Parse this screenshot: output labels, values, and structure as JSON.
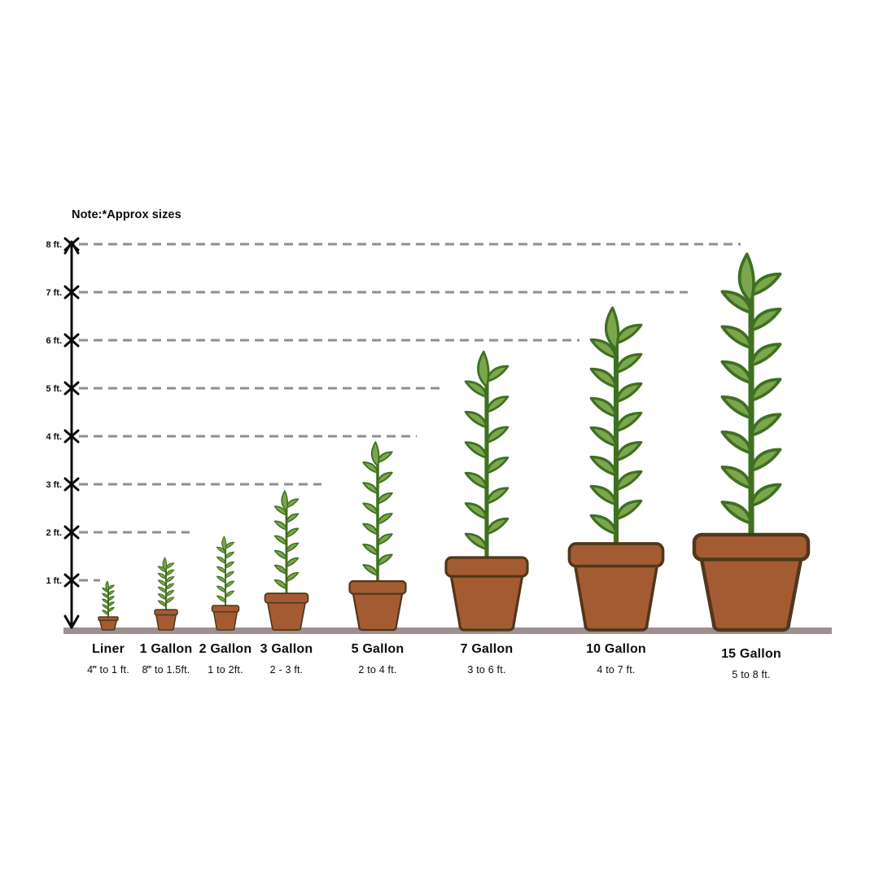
{
  "note": "Note:*Approx sizes",
  "colors": {
    "background": "#ffffff",
    "leaf_fill": "#7BA64C",
    "leaf_outline": "#3F7021",
    "stem": "#3F7021",
    "pot_fill": "#A55B32",
    "pot_outline": "#4E381C",
    "ground": "#9E9091",
    "dashed_line": "#8F8F8F",
    "axis": "#0a0a0a",
    "text": "#0d0d0d"
  },
  "chart_data": {
    "type": "bar",
    "variant": "pictorial-plant-pot-size-comparison",
    "note": "Note:*Approx sizes",
    "categories": [
      "Liner",
      "1 Gallon",
      "2 Gallon",
      "3 Gallon",
      "5 Gallon",
      "7 Gallon",
      "10 Gallon",
      "15 Gallon"
    ],
    "size_ranges": [
      "4‴ to 1 ft.",
      "8‴ to 1.5ft.",
      "1 to 2ft.",
      "2 - 3 ft.",
      "2 to 4 ft.",
      "3 to 6 ft.",
      "4 to 7 ft.",
      "5 to 8 ft."
    ],
    "height_range_ft": [
      [
        0.33,
        1
      ],
      [
        0.67,
        1.5
      ],
      [
        1,
        2
      ],
      [
        2,
        3
      ],
      [
        2,
        4
      ],
      [
        3,
        6
      ],
      [
        4,
        7
      ],
      [
        5,
        8
      ]
    ],
    "drawn_plant_height_ft": [
      1.0,
      1.5,
      1.9,
      2.9,
      3.9,
      5.8,
      6.7,
      7.8
    ],
    "yticks": [
      "1 ft.",
      "2 ft.",
      "3 ft.",
      "4 ft.",
      "5 ft.",
      "6 ft.",
      "7 ft.",
      "8 ft."
    ],
    "ylim": [
      0,
      8
    ],
    "grid": "horizontal-dashed-per-foot",
    "legend": "none",
    "axis_marker": "x-cross-at-each-foot-with-arrowheads"
  }
}
